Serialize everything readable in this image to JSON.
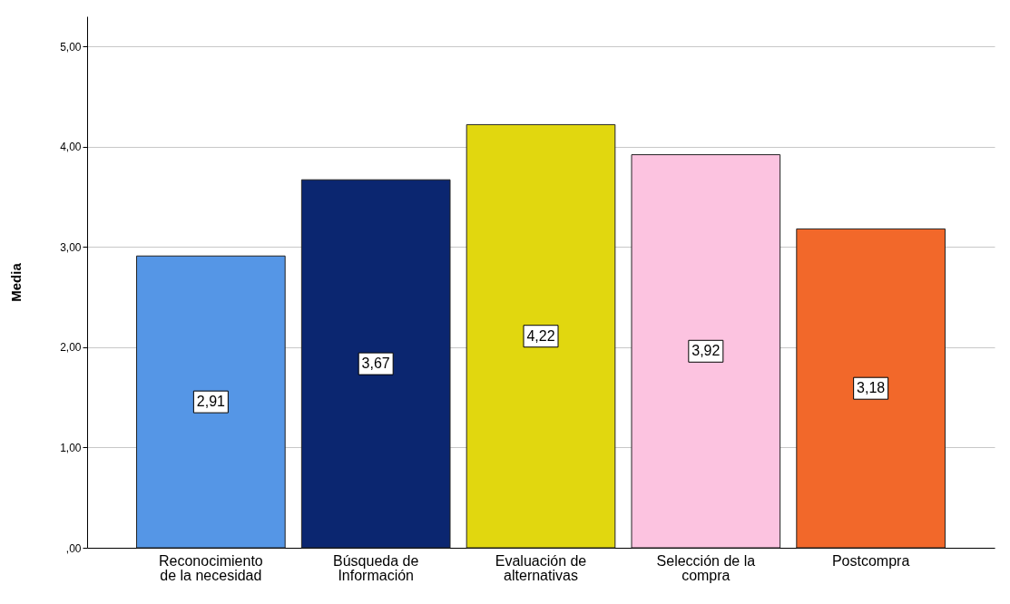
{
  "chart_data": {
    "type": "bar",
    "ylabel": "Media",
    "categories": [
      "Reconocimiento de la necesidad",
      "Búsqueda de Información",
      "Evaluación de alternativas",
      "Selección de la compra",
      "Postcompra"
    ],
    "values": [
      2.91,
      3.67,
      4.22,
      3.92,
      3.18
    ],
    "colors": [
      "#5596e6",
      "#0b2670",
      "#e1d70f",
      "#fcc3e0",
      "#f2682a"
    ],
    "value_labels": [
      "2,91",
      "3,67",
      "4,22",
      "3,92",
      "3,18"
    ],
    "ylim": [
      0,
      5.3
    ],
    "yticks": [
      {
        "value": 0,
        "label": ",00"
      },
      {
        "value": 1,
        "label": "1,00"
      },
      {
        "value": 2,
        "label": "2,00"
      },
      {
        "value": 3,
        "label": "3,00"
      },
      {
        "value": 4,
        "label": "4,00"
      },
      {
        "value": 5,
        "label": "5,00"
      }
    ],
    "grid": "y"
  }
}
